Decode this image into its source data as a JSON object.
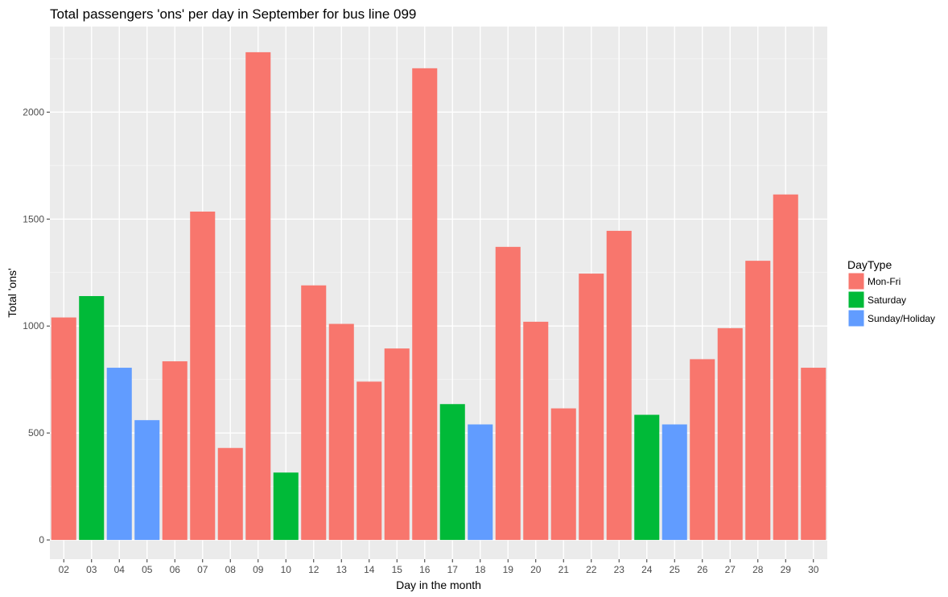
{
  "chart_data": {
    "type": "bar",
    "title": "Total passengers 'ons' per day in September for bus line 099",
    "xlabel": "Day in the month",
    "ylabel": "Total 'ons'",
    "ylim": [
      -90,
      2400
    ],
    "yticks": [
      0,
      500,
      1000,
      1500,
      2000
    ],
    "grid": true,
    "legend_position": "right",
    "legend": {
      "title": "DayType",
      "entries": [
        {
          "name": "Mon-Fri",
          "color": "#F8766D"
        },
        {
          "name": "Saturday",
          "color": "#00BA38"
        },
        {
          "name": "Sunday/Holiday",
          "color": "#619CFF"
        }
      ]
    },
    "bars": [
      {
        "day": "02",
        "value": 1040,
        "type": "Mon-Fri"
      },
      {
        "day": "03",
        "value": 1140,
        "type": "Saturday"
      },
      {
        "day": "04",
        "value": 805,
        "type": "Sunday/Holiday"
      },
      {
        "day": "05",
        "value": 560,
        "type": "Sunday/Holiday"
      },
      {
        "day": "06",
        "value": 835,
        "type": "Mon-Fri"
      },
      {
        "day": "07",
        "value": 1535,
        "type": "Mon-Fri"
      },
      {
        "day": "08",
        "value": 430,
        "type": "Mon-Fri"
      },
      {
        "day": "09",
        "value": 2280,
        "type": "Mon-Fri"
      },
      {
        "day": "10",
        "value": 315,
        "type": "Saturday"
      },
      {
        "day": "12",
        "value": 1190,
        "type": "Mon-Fri"
      },
      {
        "day": "13",
        "value": 1010,
        "type": "Mon-Fri"
      },
      {
        "day": "14",
        "value": 740,
        "type": "Mon-Fri"
      },
      {
        "day": "15",
        "value": 895,
        "type": "Mon-Fri"
      },
      {
        "day": "16",
        "value": 2205,
        "type": "Mon-Fri"
      },
      {
        "day": "17",
        "value": 635,
        "type": "Saturday"
      },
      {
        "day": "18",
        "value": 540,
        "type": "Sunday/Holiday"
      },
      {
        "day": "19",
        "value": 1370,
        "type": "Mon-Fri"
      },
      {
        "day": "20",
        "value": 1020,
        "type": "Mon-Fri"
      },
      {
        "day": "21",
        "value": 615,
        "type": "Mon-Fri"
      },
      {
        "day": "22",
        "value": 1245,
        "type": "Mon-Fri"
      },
      {
        "day": "23",
        "value": 1445,
        "type": "Mon-Fri"
      },
      {
        "day": "24",
        "value": 585,
        "type": "Saturday"
      },
      {
        "day": "25",
        "value": 540,
        "type": "Sunday/Holiday"
      },
      {
        "day": "26",
        "value": 845,
        "type": "Mon-Fri"
      },
      {
        "day": "27",
        "value": 990,
        "type": "Mon-Fri"
      },
      {
        "day": "28",
        "value": 1305,
        "type": "Mon-Fri"
      },
      {
        "day": "29",
        "value": 1615,
        "type": "Mon-Fri"
      },
      {
        "day": "30",
        "value": 805,
        "type": "Mon-Fri"
      }
    ]
  }
}
